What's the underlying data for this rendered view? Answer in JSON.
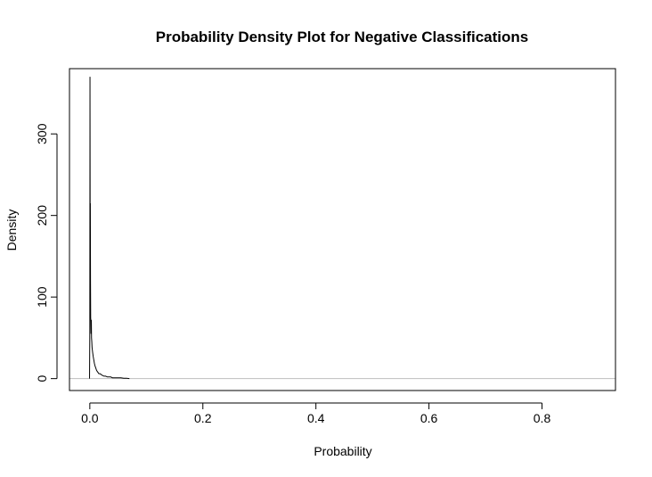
{
  "chart_data": {
    "type": "line",
    "title": "Probability Density Plot for Negative Classifications",
    "xlabel": "Probability",
    "ylabel": "Density",
    "xlim": [
      -0.036,
      0.93
    ],
    "ylim": [
      -14.6,
      380
    ],
    "x_ticks": [
      0.0,
      0.2,
      0.4,
      0.6,
      0.8
    ],
    "x_tick_labels": [
      "0.0",
      "0.2",
      "0.4",
      "0.6",
      "0.8"
    ],
    "y_ticks": [
      0,
      100,
      200,
      300
    ],
    "y_tick_labels": [
      "0",
      "100",
      "200",
      "300"
    ],
    "grid": false,
    "zero_line_color": "#bebebe",
    "line_color": "#000000",
    "series": [
      {
        "x": [
          -0.0005,
          0.0,
          0.0003,
          0.0006,
          0.0009,
          0.0012,
          0.0015,
          0.0018,
          0.0021,
          0.0024,
          0.0027,
          0.003,
          0.0035,
          0.004,
          0.005,
          0.006,
          0.007,
          0.008,
          0.009,
          0.01,
          0.012,
          0.014,
          0.016,
          0.018,
          0.02,
          0.022,
          0.025,
          0.028,
          0.031,
          0.034,
          0.037,
          0.04,
          0.043,
          0.046,
          0.05,
          0.055,
          0.06,
          0.065,
          0.068,
          0.07
        ],
        "y": [
          0,
          60,
          370,
          180,
          215,
          120,
          75,
          70,
          55,
          65,
          72,
          50,
          45,
          38,
          32,
          27,
          23,
          19,
          16,
          14,
          10,
          8,
          6,
          6,
          5,
          4,
          3,
          3,
          2,
          2,
          2,
          1,
          1,
          1,
          1,
          1,
          0.5,
          0.5,
          0.2,
          0
        ]
      }
    ]
  }
}
